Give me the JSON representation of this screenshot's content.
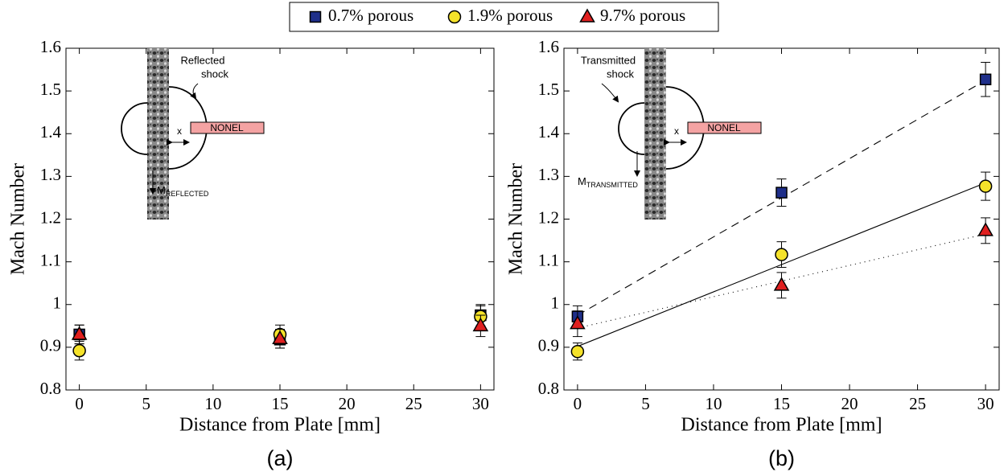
{
  "chart_data": [
    {
      "type": "scatter",
      "panel_label": "(a)",
      "x_label": "Distance from Plate [mm]",
      "y_label": "Mach Number",
      "xlim": [
        -1,
        31
      ],
      "ylim": [
        0.8,
        1.6
      ],
      "xticks": [
        0,
        5,
        10,
        15,
        20,
        25,
        30
      ],
      "yticks": [
        0.8,
        0.9,
        1,
        1.1,
        1.2,
        1.3,
        1.4,
        1.5,
        1.6
      ],
      "diagram": {
        "shock_label": [
          "Reflected",
          "shock"
        ],
        "gap": "x",
        "tube": "NONEL",
        "mach": "M",
        "mach_sub": "REFLECTED"
      },
      "series": [
        {
          "name": "0.7% porous",
          "marker": "square",
          "color": "#1f2f8a",
          "x": [
            0,
            15,
            30
          ],
          "values": [
            0.93,
            0.918,
            0.975
          ],
          "errors": [
            0.022,
            0.02,
            0.025
          ]
        },
        {
          "name": "1.9% porous",
          "marker": "circle",
          "color": "#f5e22a",
          "x": [
            0,
            15,
            30
          ],
          "values": [
            0.892,
            0.93,
            0.972
          ],
          "errors": [
            0.022,
            0.022,
            0.025
          ]
        },
        {
          "name": "9.7% porous",
          "marker": "triangle",
          "color": "#e02020",
          "x": [
            0,
            15,
            30
          ],
          "values": [
            0.93,
            0.92,
            0.95
          ],
          "errors": [
            0.022,
            0.022,
            0.025
          ]
        }
      ]
    },
    {
      "type": "scatter",
      "panel_label": "(b)",
      "x_label": "Distance from Plate [mm]",
      "y_label": "Mach Number",
      "xlim": [
        -1,
        31
      ],
      "ylim": [
        0.8,
        1.6
      ],
      "xticks": [
        0,
        5,
        10,
        15,
        20,
        25,
        30
      ],
      "yticks": [
        0.8,
        0.9,
        1,
        1.1,
        1.2,
        1.3,
        1.4,
        1.5,
        1.6
      ],
      "diagram": {
        "shock_label": [
          "Transmitted",
          "shock"
        ],
        "gap": "x",
        "tube": "NONEL",
        "mach": "M",
        "mach_sub": "TRANSMITTED"
      },
      "series": [
        {
          "name": "0.7% porous",
          "marker": "square",
          "color": "#1f2f8a",
          "x": [
            0,
            15,
            30
          ],
          "values": [
            0.972,
            1.262,
            1.527
          ],
          "errors": [
            0.025,
            0.032,
            0.04
          ],
          "fit": {
            "x": [
              0,
              30
            ],
            "values": [
              0.975,
              1.525
            ],
            "dash": "10,7"
          }
        },
        {
          "name": "1.9% porous",
          "marker": "circle",
          "color": "#f5e22a",
          "x": [
            0,
            15,
            30
          ],
          "values": [
            0.89,
            1.117,
            1.277
          ],
          "errors": [
            0.02,
            0.03,
            0.033
          ],
          "fit": {
            "x": [
              0,
              30
            ],
            "values": [
              0.902,
              1.285
            ],
            "dash": "none"
          }
        },
        {
          "name": "9.7% porous",
          "marker": "triangle",
          "color": "#e02020",
          "x": [
            0,
            15,
            30
          ],
          "values": [
            0.955,
            1.045,
            1.173
          ],
          "errors": [
            0.03,
            0.03,
            0.03
          ],
          "fit": {
            "x": [
              0,
              30
            ],
            "values": [
              0.945,
              1.165
            ],
            "dash": "1,5"
          }
        }
      ]
    }
  ]
}
